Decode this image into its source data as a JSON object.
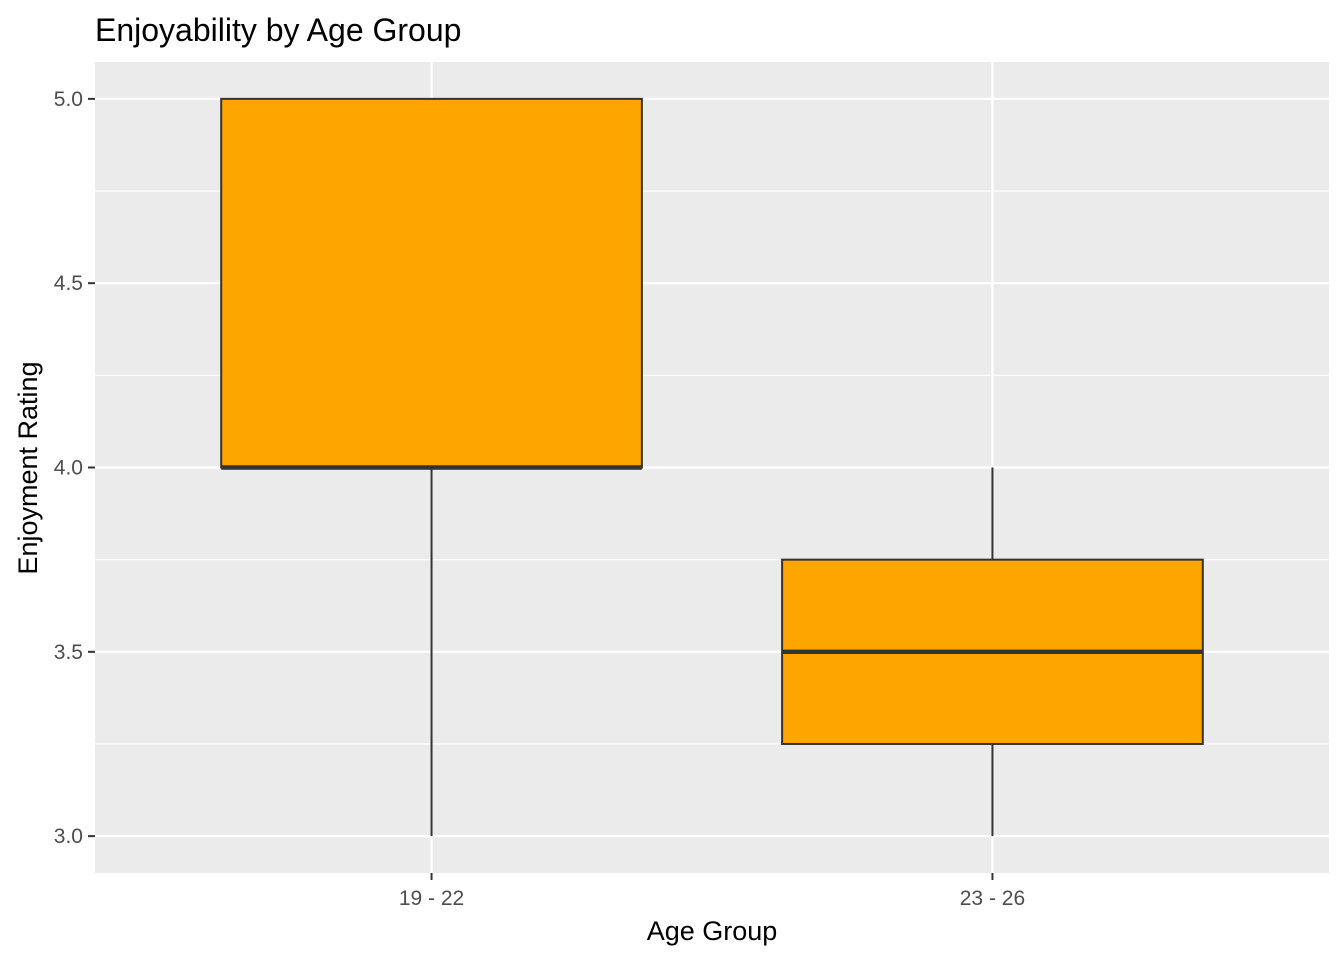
{
  "chart_data": {
    "type": "boxplot",
    "title": "Enjoyability by Age Group",
    "xlabel": "Age Group",
    "ylabel": "Enjoyment Rating",
    "categories": [
      "19 - 22",
      "23 - 26"
    ],
    "boxes": [
      {
        "category": "19 - 22",
        "min": 3.0,
        "q1": 4.0,
        "median": 4.0,
        "q3": 5.0,
        "max": 5.0
      },
      {
        "category": "23 - 26",
        "min": 3.0,
        "q1": 3.25,
        "median": 3.5,
        "q3": 3.75,
        "max": 4.0
      }
    ],
    "ylim": [
      2.9,
      5.1
    ],
    "yticks": [
      3.0,
      3.5,
      4.0,
      4.5,
      5.0
    ],
    "ytick_labels": [
      "3.0",
      "3.5",
      "4.0",
      "4.5",
      "5.0"
    ],
    "grid": true,
    "colors": {
      "box_fill": "#FFA500",
      "box_stroke": "#333333",
      "panel_background": "#EBEBEB",
      "grid": "#FFFFFF"
    }
  }
}
